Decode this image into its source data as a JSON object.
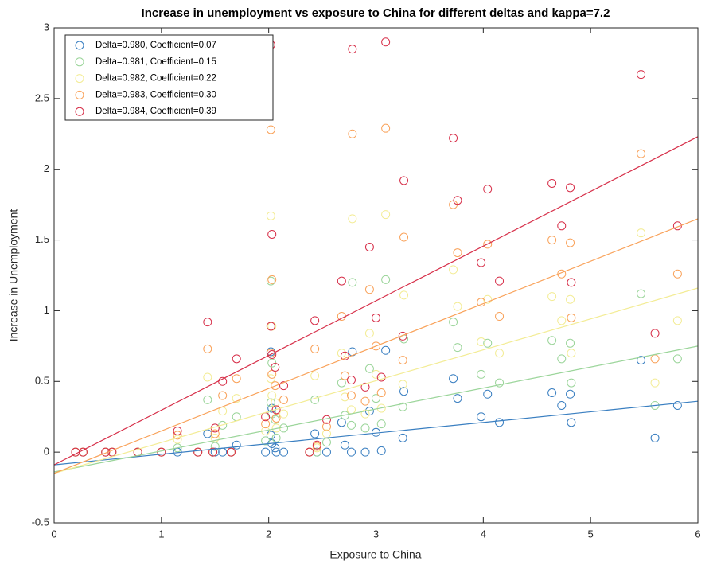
{
  "chart_data": {
    "type": "scatter",
    "title": "Increase in unemployment vs exposure to China for different deltas and kappa=7.2",
    "x_label": "Exposure to China",
    "y_label": "Increase in Unemployment",
    "xlim": [
      0,
      6
    ],
    "ylim": [
      -0.5,
      3
    ],
    "xticks": [
      0,
      1,
      2,
      3,
      4,
      5,
      6
    ],
    "yticks": [
      -0.5,
      0,
      0.5,
      1,
      1.5,
      2,
      2.5,
      3
    ],
    "legend_position": "northwest",
    "x": [
      0.2,
      0.27,
      0.48,
      0.54,
      0.78,
      1.0,
      1.15,
      1.34,
      1.43,
      1.48,
      1.5,
      1.57,
      1.65,
      1.7,
      1.97,
      2.02,
      2.02,
      2.03,
      2.03,
      2.06,
      2.07,
      2.14,
      2.38,
      2.43,
      2.45,
      2.54,
      2.68,
      2.71,
      2.77,
      2.78,
      2.9,
      2.94,
      3.0,
      3.05,
      3.09,
      3.25,
      3.26,
      3.72,
      3.76,
      3.98,
      4.04,
      4.15,
      4.64,
      4.73,
      4.81,
      4.82,
      5.47,
      5.6,
      5.81
    ],
    "series": [
      {
        "name": "Delta=0.980, Coefficient=0.07",
        "color": "#3a7fc1",
        "values": [
          0,
          0,
          0,
          0,
          0,
          0,
          0,
          0,
          0.13,
          0,
          0,
          0,
          0,
          0.05,
          0,
          0.12,
          0.71,
          0.31,
          0.06,
          0.03,
          0,
          0,
          0,
          0.13,
          0,
          0,
          0.21,
          0.05,
          0,
          0.71,
          0,
          0.29,
          0.14,
          0.01,
          0.72,
          0.1,
          0.43,
          0.52,
          0.38,
          0.25,
          0.41,
          0.21,
          0.42,
          0.33,
          0.41,
          0.21,
          0.65,
          0.1,
          0.33
        ],
        "fit": {
          "x": [
            0,
            6
          ],
          "values": [
            -0.09,
            0.36
          ]
        }
      },
      {
        "name": "Delta=0.981, Coefficient=0.15",
        "color": "#9bd59a",
        "values": [
          0,
          0,
          0,
          0,
          0,
          0,
          0.03,
          0,
          0.37,
          0,
          0.04,
          0.19,
          0,
          0.25,
          0.08,
          0.35,
          1.21,
          0.63,
          0.27,
          0.23,
          0.1,
          0.17,
          0,
          0.37,
          0,
          0.07,
          0.49,
          0.26,
          0.19,
          1.2,
          0.17,
          0.59,
          0.38,
          0.2,
          1.22,
          0.32,
          0.8,
          0.92,
          0.74,
          0.55,
          0.77,
          0.49,
          0.79,
          0.66,
          0.77,
          0.49,
          1.12,
          0.33,
          0.66
        ],
        "fit": {
          "x": [
            0,
            6
          ],
          "values": [
            -0.14,
            0.75
          ]
        }
      },
      {
        "name": "Delta=0.982, Coefficient=0.22",
        "color": "#f3ec95",
        "values": [
          0,
          0,
          0,
          0,
          0,
          0,
          0.09,
          0,
          0.53,
          0,
          0.1,
          0.29,
          0,
          0.38,
          0.15,
          0.52,
          1.67,
          0.89,
          0.4,
          0.35,
          0.17,
          0.27,
          0,
          0.54,
          0.03,
          0.13,
          0.7,
          0.39,
          0.3,
          1.65,
          0.27,
          0.84,
          0.55,
          0.31,
          1.68,
          0.48,
          1.11,
          1.29,
          1.03,
          0.78,
          1.08,
          0.7,
          1.1,
          0.93,
          1.08,
          0.7,
          1.55,
          0.49,
          0.93
        ],
        "fit": {
          "x": [
            0,
            6
          ],
          "values": [
            -0.15,
            1.16
          ]
        }
      },
      {
        "name": "Delta=0.983, Coefficient=0.30",
        "color": "#f9a25a",
        "values": [
          0,
          0,
          0,
          0,
          0,
          0,
          0.12,
          0,
          0.73,
          0,
          0.13,
          0.4,
          0,
          0.52,
          0.2,
          0.7,
          2.28,
          1.22,
          0.55,
          0.47,
          0.24,
          0.37,
          0,
          0.73,
          0.04,
          0.18,
          0.96,
          0.54,
          0.4,
          2.25,
          0.36,
          1.15,
          0.75,
          0.42,
          2.29,
          0.65,
          1.52,
          1.75,
          1.41,
          1.06,
          1.47,
          0.96,
          1.5,
          1.26,
          1.48,
          0.95,
          2.11,
          0.66,
          1.26
        ],
        "fit": {
          "x": [
            0,
            6
          ],
          "values": [
            -0.15,
            1.65
          ]
        }
      },
      {
        "name": "Delta=0.984, Coefficient=0.39",
        "color": "#d7304a",
        "values": [
          0,
          0,
          0,
          0,
          0,
          0,
          0.15,
          0,
          0.92,
          0,
          0.17,
          0.5,
          0,
          0.66,
          0.25,
          0.89,
          2.88,
          1.54,
          0.69,
          0.6,
          0.3,
          0.47,
          0,
          0.93,
          0.05,
          0.23,
          1.21,
          0.68,
          0.51,
          2.85,
          0.46,
          1.45,
          0.95,
          0.53,
          2.9,
          0.82,
          1.92,
          2.22,
          1.78,
          1.34,
          1.86,
          1.21,
          1.9,
          1.6,
          1.87,
          1.2,
          2.67,
          0.84,
          1.6
        ],
        "fit": {
          "x": [
            0,
            6
          ],
          "values": [
            -0.09,
            2.23
          ]
        }
      }
    ]
  }
}
